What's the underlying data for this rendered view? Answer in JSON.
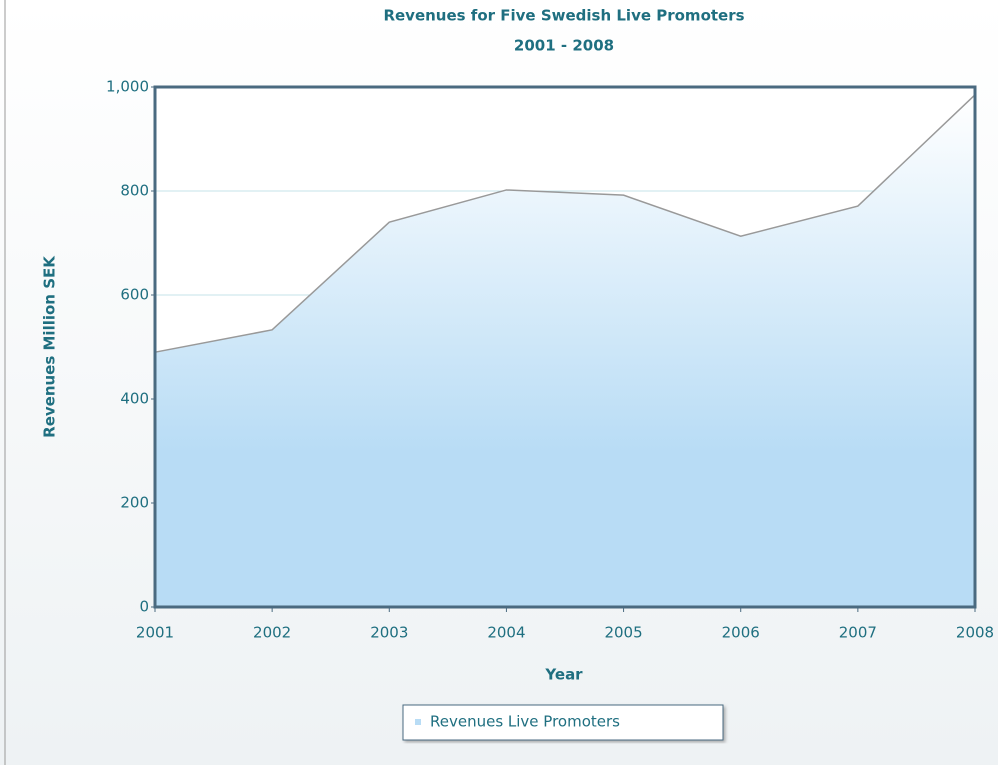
{
  "chart_data": {
    "type": "area",
    "title": "Revenues for Five Swedish Live Promoters",
    "subtitle": "2001 - 2008",
    "x_label": "Year",
    "y_label": "Revenues Million SEK",
    "x": [
      2001,
      2002,
      2003,
      2004,
      2005,
      2006,
      2007,
      2008
    ],
    "xlim": [
      2001,
      2008
    ],
    "xticks": [
      2001,
      2002,
      2003,
      2004,
      2005,
      2006,
      2007,
      2008
    ],
    "series": [
      {
        "name": "Revenues Live Promoters",
        "color": "#b8dcf5",
        "line_color": "#999999",
        "values": [
          490,
          533,
          740,
          802,
          792,
          713,
          771,
          985
        ]
      }
    ],
    "ylim": [
      0,
      1000
    ],
    "yticks": [
      0,
      200,
      400,
      600,
      800,
      {
        "value": 1000,
        "label": "1,000"
      }
    ],
    "grid": true,
    "legend": "bottom"
  }
}
